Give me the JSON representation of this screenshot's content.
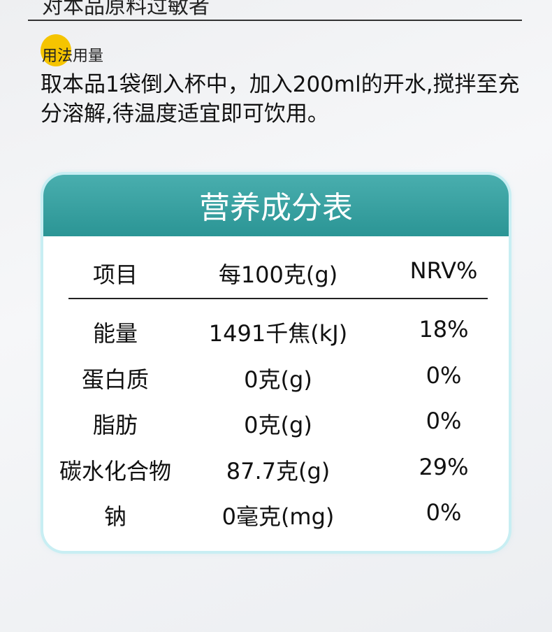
{
  "top_text": "对本品原料过敏者",
  "usage": {
    "title": "用法用量",
    "text": "取本品1袋倒入杯中，加入200ml的开水,搅拌至充分溶解,待温度适宜即可饮用。",
    "accent_color": "#f5c400"
  },
  "nutrition": {
    "title": "营养成分表",
    "header_color": "#2b9595",
    "columns": [
      "项目",
      "每100克(g)",
      "NRV%"
    ],
    "rows": [
      [
        "能量",
        "1491千焦(kJ)",
        "18%"
      ],
      [
        "蛋白质",
        "0克(g)",
        "0%"
      ],
      [
        "脂肪",
        "0克(g)",
        "0%"
      ],
      [
        "碳水化合物",
        "87.7克(g)",
        "29%"
      ],
      [
        "钠",
        "0毫克(mg)",
        "0%"
      ]
    ]
  }
}
